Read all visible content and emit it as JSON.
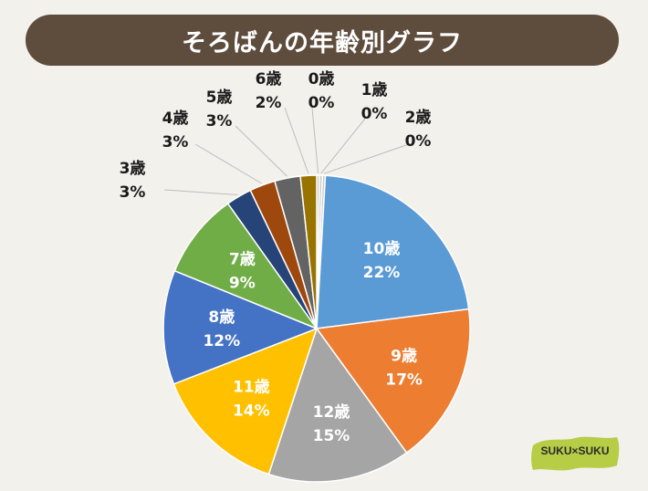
{
  "title": "そろばんの年齢別グラフ",
  "chart_data": {
    "type": "pie",
    "title": "そろばんの年齢別グラフ",
    "start_angle_deg": 0,
    "direction": "clockwise",
    "slices": [
      {
        "label": "0歳",
        "value": 0.3,
        "pct_label": "0%",
        "color": "#c9c9c9",
        "label_pos": "outside"
      },
      {
        "label": "1歳",
        "value": 0.3,
        "pct_label": "0%",
        "color": "#c9c9c9",
        "label_pos": "outside"
      },
      {
        "label": "2歳",
        "value": 0.3,
        "pct_label": "0%",
        "color": "#c9c9c9",
        "label_pos": "outside"
      },
      {
        "label": "10歳",
        "value": 22,
        "pct_label": "22%",
        "color": "#5b9bd5",
        "label_pos": "inside"
      },
      {
        "label": "9歳",
        "value": 17,
        "pct_label": "17%",
        "color": "#ed7d31",
        "label_pos": "inside"
      },
      {
        "label": "12歳",
        "value": 15,
        "pct_label": "15%",
        "color": "#a5a5a5",
        "label_pos": "inside"
      },
      {
        "label": "11歳",
        "value": 14,
        "pct_label": "14%",
        "color": "#ffc000",
        "label_pos": "inside"
      },
      {
        "label": "8歳",
        "value": 12,
        "pct_label": "12%",
        "color": "#4472c4",
        "label_pos": "inside"
      },
      {
        "label": "7歳",
        "value": 9,
        "pct_label": "9%",
        "color": "#70ad47",
        "label_pos": "inside"
      },
      {
        "label": "3歳",
        "value": 2.7,
        "pct_label": "3%",
        "color": "#264478",
        "label_pos": "outside"
      },
      {
        "label": "4歳",
        "value": 2.7,
        "pct_label": "3%",
        "color": "#9e480e",
        "label_pos": "outside"
      },
      {
        "label": "5歳",
        "value": 2.7,
        "pct_label": "3%",
        "color": "#636363",
        "label_pos": "outside"
      },
      {
        "label": "6歳",
        "value": 1.7,
        "pct_label": "2%",
        "color": "#997300",
        "label_pos": "outside"
      }
    ]
  },
  "logo": {
    "text": "SUKU×SUKU",
    "color": "#b6cd45"
  }
}
